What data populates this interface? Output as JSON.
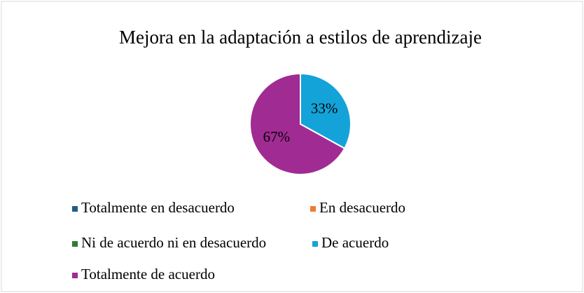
{
  "chart_data": {
    "type": "pie",
    "title": "Mejora en la adaptación a estilos de aprendizaje",
    "categories": [
      "Totalmente en desacuerdo",
      "En desacuerdo",
      "Ni de acuerdo ni en desacuerdo",
      "De acuerdo",
      "Totalmente de acuerdo"
    ],
    "values": [
      0,
      0,
      0,
      33,
      67
    ],
    "value_labels": [
      null,
      null,
      null,
      "33%",
      "67%"
    ],
    "colors": [
      "#1f5f7f",
      "#ed7d31",
      "#2e7d32",
      "#14a3d9",
      "#a02b93"
    ],
    "legend": "bottom"
  }
}
